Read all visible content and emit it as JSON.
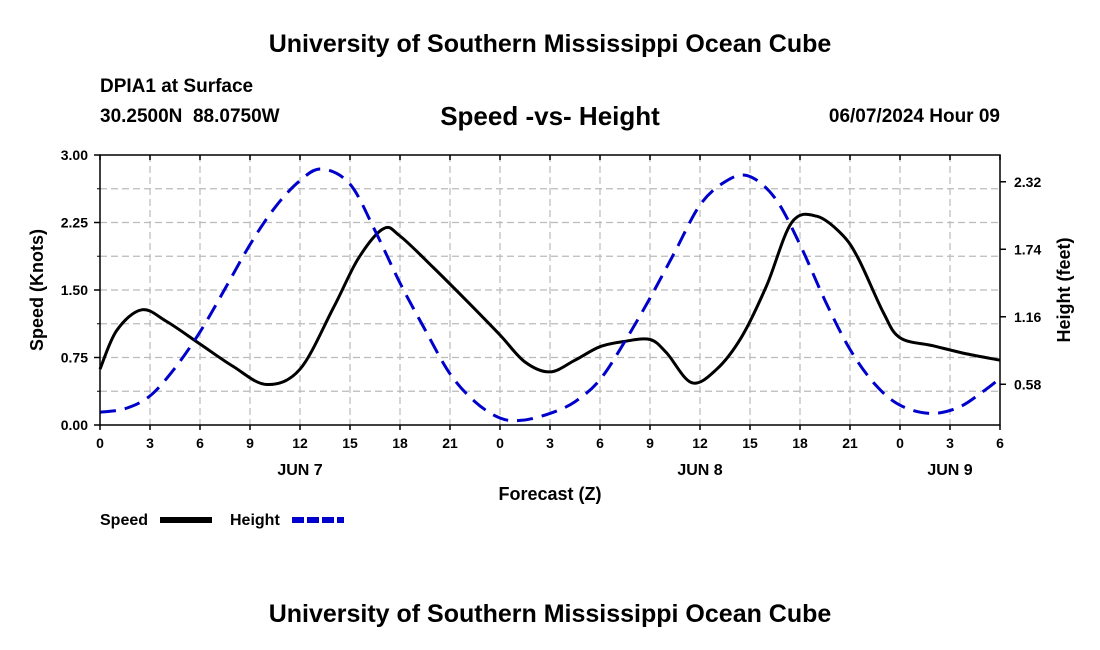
{
  "header": {
    "title": "University of Southern Mississippi Ocean Cube",
    "station": "DPIA1 at Surface",
    "coords": "30.2500N  88.0750W",
    "plot_title": "Speed -vs- Height",
    "timestamp": "06/07/2024 Hour 09"
  },
  "footer": {
    "title": "University of Southern Mississippi Ocean Cube"
  },
  "legend": {
    "items": [
      {
        "label": "Speed",
        "color": "#000000",
        "style": "solid"
      },
      {
        "label": "Height",
        "color": "#0000cc",
        "style": "dashed"
      }
    ]
  },
  "colors": {
    "speed": "#000000",
    "height": "#0000cc",
    "grid": "#bbbbbb"
  },
  "chart_data": {
    "type": "line",
    "title": "Speed -vs- Height",
    "xlabel": "Forecast (Z)",
    "ylabel": "Speed (Knots)",
    "y2label": "Height (feet)",
    "xlim": [
      0,
      54
    ],
    "ylim": [
      0,
      3
    ],
    "y2lim": [
      0.23,
      2.55
    ],
    "x_ticks": [
      0,
      3,
      6,
      9,
      12,
      15,
      18,
      21,
      24,
      27,
      30,
      33,
      36,
      39,
      42,
      45,
      48,
      51,
      54
    ],
    "x_tick_labels": [
      "0",
      "3",
      "6",
      "9",
      "12",
      "15",
      "18",
      "21",
      "0",
      "3",
      "6",
      "9",
      "12",
      "15",
      "18",
      "21",
      "0",
      "3",
      "6"
    ],
    "day_labels": [
      {
        "x": 12,
        "label": "JUN 7"
      },
      {
        "x": 36,
        "label": "JUN 8"
      },
      {
        "x": 51,
        "label": "JUN 9"
      }
    ],
    "y_ticks": [
      0,
      0.75,
      1.5,
      2.25,
      3.0
    ],
    "y_tick_labels": [
      "0.00",
      "0.75",
      "1.50",
      "2.25",
      "3.00"
    ],
    "y2_ticks": [
      0.58,
      1.16,
      1.74,
      2.32
    ],
    "y2_tick_labels": [
      "0.58",
      "1.16",
      "1.74",
      "2.32"
    ],
    "series": [
      {
        "name": "Speed",
        "axis": "left",
        "x": [
          0,
          1,
          2.5,
          4,
          6,
          8,
          10,
          12,
          14,
          15.5,
          17,
          18,
          20,
          22,
          24,
          25.5,
          27,
          28.5,
          30,
          31.5,
          33,
          34,
          35.5,
          37,
          38.5,
          40,
          41.5,
          43,
          44.5,
          45.5,
          47,
          48,
          50,
          52,
          54
        ],
        "values": [
          0.62,
          1.05,
          1.28,
          1.15,
          0.9,
          0.65,
          0.45,
          0.62,
          1.3,
          1.85,
          2.18,
          2.1,
          1.75,
          1.38,
          1.0,
          0.7,
          0.59,
          0.72,
          0.87,
          0.93,
          0.95,
          0.8,
          0.47,
          0.62,
          0.98,
          1.55,
          2.25,
          2.32,
          2.12,
          1.85,
          1.25,
          0.97,
          0.88,
          0.79,
          0.72
        ]
      },
      {
        "name": "Height",
        "axis": "right",
        "x": [
          0,
          1.5,
          3,
          4.5,
          6,
          7.5,
          9,
          10.5,
          12,
          13.3,
          15,
          16.5,
          18,
          19.5,
          21,
          22.5,
          24,
          25.3,
          27,
          28.5,
          30,
          31.5,
          33,
          34.5,
          36,
          37.5,
          38.9,
          40.5,
          42,
          43.5,
          45,
          46.5,
          48,
          49.8,
          51.5,
          53,
          54
        ],
        "values": [
          0.34,
          0.37,
          0.48,
          0.72,
          1.03,
          1.4,
          1.78,
          2.1,
          2.33,
          2.43,
          2.3,
          1.9,
          1.45,
          1.05,
          0.67,
          0.43,
          0.29,
          0.27,
          0.33,
          0.43,
          0.62,
          0.95,
          1.32,
          1.72,
          2.12,
          2.32,
          2.37,
          2.18,
          1.78,
          1.3,
          0.88,
          0.58,
          0.4,
          0.33,
          0.38,
          0.52,
          0.63
        ]
      }
    ]
  }
}
